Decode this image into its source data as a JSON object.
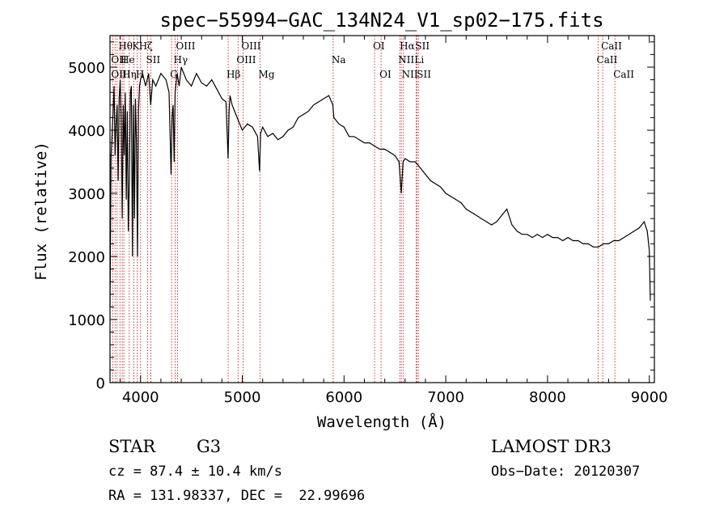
{
  "chart_data": {
    "type": "line",
    "title": "spec−55994−GAC_134N24_V1_sp02−175.fits",
    "xlabel": "Wavelength (Å)",
    "ylabel": "Flux (relative)",
    "xlim": [
      3700,
      9050
    ],
    "ylim": [
      0,
      5500
    ],
    "xticks": [
      4000,
      5000,
      6000,
      7000,
      8000,
      9000
    ],
    "yticks": [
      0,
      1000,
      2000,
      3000,
      4000,
      5000
    ],
    "series": [
      {
        "name": "flux",
        "x": [
          3700,
          3710,
          3720,
          3730,
          3740,
          3750,
          3760,
          3770,
          3780,
          3790,
          3800,
          3810,
          3820,
          3830,
          3840,
          3850,
          3860,
          3870,
          3880,
          3890,
          3900,
          3910,
          3920,
          3930,
          3940,
          3950,
          3960,
          3970,
          3980,
          3990,
          4000,
          4020,
          4050,
          4080,
          4100,
          4120,
          4150,
          4200,
          4250,
          4280,
          4300,
          4310,
          4320,
          4330,
          4340,
          4360,
          4380,
          4400,
          4450,
          4500,
          4550,
          4600,
          4650,
          4700,
          4750,
          4800,
          4840,
          4861,
          4870,
          4880,
          4900,
          4950,
          5000,
          5050,
          5100,
          5150,
          5170,
          5180,
          5200,
          5250,
          5300,
          5350,
          5400,
          5450,
          5500,
          5550,
          5600,
          5650,
          5700,
          5750,
          5800,
          5850,
          5890,
          5900,
          5950,
          6000,
          6050,
          6100,
          6150,
          6200,
          6250,
          6300,
          6350,
          6400,
          6450,
          6500,
          6540,
          6563,
          6580,
          6600,
          6650,
          6700,
          6750,
          6800,
          6850,
          6900,
          6950,
          7000,
          7050,
          7100,
          7150,
          7200,
          7250,
          7300,
          7350,
          7400,
          7450,
          7500,
          7550,
          7600,
          7650,
          7700,
          7750,
          7800,
          7850,
          7900,
          7950,
          8000,
          8050,
          8100,
          8150,
          8200,
          8250,
          8300,
          8350,
          8400,
          8450,
          8500,
          8550,
          8600,
          8650,
          8700,
          8750,
          8800,
          8850,
          8900,
          8950,
          8980,
          9000,
          9010
        ],
        "y": [
          1200,
          3600,
          3900,
          4300,
          4700,
          3600,
          4100,
          4400,
          3200,
          4500,
          4800,
          4200,
          2600,
          4400,
          3600,
          4600,
          2900,
          4300,
          2400,
          3200,
          4600,
          4700,
          2000,
          4400,
          2600,
          4500,
          3800,
          2000,
          4300,
          4700,
          4800,
          4900,
          4700,
          4900,
          4400,
          4800,
          4700,
          4900,
          4800,
          4600,
          3300,
          4200,
          4400,
          3500,
          4600,
          4900,
          4700,
          5000,
          4800,
          4700,
          4900,
          4750,
          4700,
          4800,
          4650,
          4500,
          4450,
          3550,
          4300,
          4550,
          4400,
          4200,
          4000,
          4100,
          4050,
          3900,
          3350,
          3950,
          4050,
          3900,
          3950,
          3850,
          3900,
          4000,
          4050,
          4200,
          4250,
          4300,
          4400,
          4450,
          4500,
          4550,
          4400,
          4200,
          4100,
          4050,
          3900,
          3900,
          3850,
          3800,
          3800,
          3750,
          3700,
          3700,
          3650,
          3600,
          3500,
          3000,
          3500,
          3550,
          3500,
          3500,
          3400,
          3300,
          3200,
          3150,
          3100,
          3000,
          2950,
          2900,
          2850,
          2750,
          2700,
          2650,
          2600,
          2550,
          2500,
          2550,
          2650,
          2750,
          2500,
          2400,
          2350,
          2350,
          2300,
          2350,
          2300,
          2350,
          2300,
          2300,
          2250,
          2300,
          2250,
          2250,
          2200,
          2200,
          2150,
          2150,
          2200,
          2200,
          2250,
          2250,
          2300,
          2350,
          2400,
          2450,
          2550,
          2400,
          2100,
          1300
        ]
      }
    ],
    "spectral_lines": [
      {
        "name": "Hθ",
        "wl": 3798,
        "row": 0
      },
      {
        "name": "OII",
        "wl": 3727,
        "row": 1
      },
      {
        "name": "OIII",
        "wl": 3727,
        "row": 2
      },
      {
        "name": "He",
        "wl": 3820,
        "row": 1
      },
      {
        "name": "Hη",
        "wl": 3836,
        "row": 2
      },
      {
        "name": "K",
        "wl": 3934,
        "row": 0
      },
      {
        "name": "H",
        "wl": 3968,
        "row": 2
      },
      {
        "name": "Hζ",
        "wl": 4000,
        "row": 0
      },
      {
        "name": "SII",
        "wl": 4070,
        "row": 1
      },
      {
        "name": "OIII",
        "wl": 4363,
        "row": 0
      },
      {
        "name": "Hγ",
        "wl": 4340,
        "row": 1
      },
      {
        "name": "G",
        "wl": 4305,
        "row": 2
      },
      {
        "name": "Hβ",
        "wl": 4861,
        "row": 2
      },
      {
        "name": "OIII",
        "wl": 5007,
        "row": 0
      },
      {
        "name": "OIII",
        "wl": 4959,
        "row": 1
      },
      {
        "name": "Mg",
        "wl": 5175,
        "row": 2
      },
      {
        "name": "Na",
        "wl": 5893,
        "row": 1
      },
      {
        "name": "OI",
        "wl": 6300,
        "row": 0
      },
      {
        "name": "OI",
        "wl": 6364,
        "row": 2
      },
      {
        "name": "Hα",
        "wl": 6563,
        "row": 0
      },
      {
        "name": "NII",
        "wl": 6548,
        "row": 1
      },
      {
        "name": "NII",
        "wl": 6583,
        "row": 2
      },
      {
        "name": "SII",
        "wl": 6716,
        "row": 0
      },
      {
        "name": "Li",
        "wl": 6708,
        "row": 1
      },
      {
        "name": "SII",
        "wl": 6731,
        "row": 2
      },
      {
        "name": "CaII",
        "wl": 8542,
        "row": 0
      },
      {
        "name": "CaII",
        "wl": 8498,
        "row": 1
      },
      {
        "name": "CaII",
        "wl": 8662,
        "row": 2
      }
    ],
    "line_marks_wl": [
      3727,
      3750,
      3770,
      3798,
      3820,
      3836,
      3889,
      3934,
      3968,
      4000,
      4070,
      4102,
      4305,
      4340,
      4363,
      4861,
      4959,
      5007,
      5175,
      5893,
      6300,
      6364,
      6548,
      6563,
      6583,
      6708,
      6716,
      6731,
      8498,
      8542,
      8662
    ]
  },
  "info": {
    "object_type": "STAR",
    "subclass": "G3",
    "survey": "LAMOST DR3",
    "redshift": "cz = 87.4 ± 10.4 km/s",
    "obs_date": "Obs−Date: 20120307",
    "coords": "RA = 131.98337, DEC =  22.99696"
  },
  "colors": {
    "spectrum": "#000000",
    "line_marker": "#cc2222",
    "axis": "#000000"
  }
}
